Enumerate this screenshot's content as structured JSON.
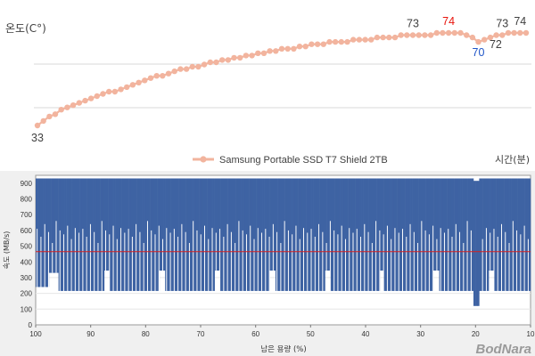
{
  "charts": [
    {
      "type": "line",
      "ylabel": "온도(C°)",
      "xlabel": "시간(분)",
      "legend": "Samsung Portable SSD T7 Shield 2TB",
      "series_color": "#f2b49e",
      "highlight_max_color": "#e8140c",
      "highlight_min_color": "#1f55c8",
      "label_color": "#404040",
      "values": [
        33,
        35,
        37,
        38,
        40,
        41,
        42,
        43,
        44,
        45,
        46,
        47,
        48,
        48,
        49,
        50,
        51,
        52,
        53,
        54,
        55,
        55,
        56,
        57,
        58,
        58,
        59,
        59,
        60,
        61,
        61,
        62,
        62,
        63,
        63,
        64,
        64,
        65,
        65,
        66,
        66,
        67,
        67,
        67,
        68,
        68,
        69,
        69,
        69,
        70,
        70,
        70,
        70,
        71,
        71,
        71,
        71,
        72,
        72,
        72,
        72,
        73,
        73,
        73,
        73,
        73,
        73,
        74,
        74,
        74,
        74,
        74,
        73,
        72,
        70,
        71,
        72,
        73,
        73,
        74,
        74,
        74,
        74
      ],
      "annotations": [
        {
          "index": 0,
          "text": "33",
          "kind": "normal"
        },
        {
          "index": 63,
          "text": "73",
          "kind": "normal"
        },
        {
          "index": 69,
          "text": "74",
          "kind": "max"
        },
        {
          "index": 74,
          "text": "70",
          "kind": "min"
        },
        {
          "index": 76,
          "text": "72",
          "kind": "normal"
        },
        {
          "index": 78,
          "text": "73",
          "kind": "normal"
        },
        {
          "index": 81,
          "text": "74",
          "kind": "normal"
        }
      ]
    },
    {
      "type": "bar",
      "ylabel": "속도 (MB/s)",
      "xlabel": "남은 용량 (%)",
      "watermark": "BodNara",
      "bar_color": "#3e63a3",
      "low_color": "#ffffff",
      "avg_color": "#d32020",
      "average": 465,
      "ylim": [
        0,
        950
      ],
      "yticks": [
        0,
        100,
        200,
        300,
        400,
        500,
        600,
        700,
        800,
        900
      ],
      "xlim": [
        100,
        10
      ],
      "xticks": [
        100,
        90,
        80,
        70,
        60,
        50,
        40,
        30,
        20,
        10
      ],
      "baseline_profile": [
        {
          "from": 100,
          "to": 97.5,
          "value": 240
        },
        {
          "from": 97.5,
          "to": 96,
          "value": 330
        },
        {
          "from": 96,
          "to": 87.5,
          "value": 215
        },
        {
          "from": 87.5,
          "to": 86.5,
          "value": 345
        },
        {
          "from": 86.5,
          "to": 77.5,
          "value": 215
        },
        {
          "from": 77.5,
          "to": 76.5,
          "value": 345
        },
        {
          "from": 76.5,
          "to": 67.5,
          "value": 215
        },
        {
          "from": 67.5,
          "to": 66.5,
          "value": 345
        },
        {
          "from": 66.5,
          "to": 57.5,
          "value": 215
        },
        {
          "from": 57.5,
          "to": 56.5,
          "value": 345
        },
        {
          "from": 56.5,
          "to": 47.5,
          "value": 215
        },
        {
          "from": 47.5,
          "to": 46.5,
          "value": 345
        },
        {
          "from": 46.5,
          "to": 37.5,
          "value": 215
        },
        {
          "from": 37.5,
          "to": 36.5,
          "value": 345
        },
        {
          "from": 36.5,
          "to": 27.5,
          "value": 215
        },
        {
          "from": 27.5,
          "to": 26.5,
          "value": 345
        },
        {
          "from": 26.5,
          "to": 20.5,
          "value": 215
        },
        {
          "from": 20.5,
          "to": 19.5,
          "value": 120
        },
        {
          "from": 19.5,
          "to": 17.5,
          "value": 215
        },
        {
          "from": 17.5,
          "to": 16.5,
          "value": 345
        },
        {
          "from": 16.5,
          "to": 10,
          "value": 215
        }
      ],
      "spike_levels": [
        610,
        560,
        640,
        590,
        520,
        660,
        600,
        575,
        630,
        545,
        615,
        585
      ]
    }
  ]
}
